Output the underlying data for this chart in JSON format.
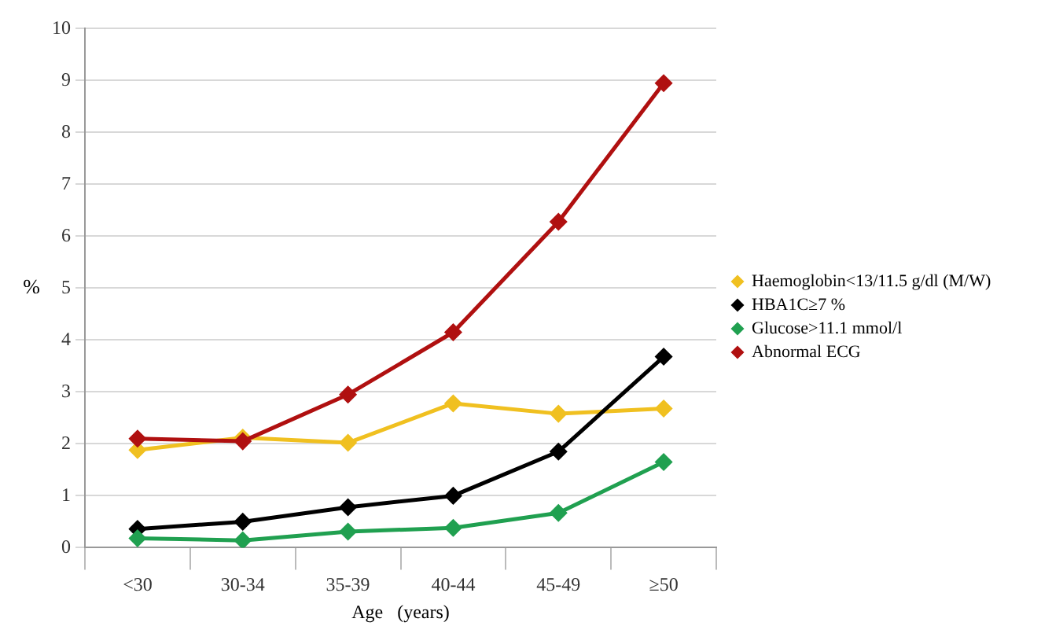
{
  "chart_data": {
    "type": "line",
    "xlabel": "Age   (years)",
    "ylabel": "%",
    "categories": [
      "<30",
      "30-34",
      "35-39",
      "40-44",
      "45-49",
      "≥50"
    ],
    "series": [
      {
        "name": "Haemoglobin<13/11.5 g/dl (M/W)",
        "color": "#f0c020",
        "values": [
          1.88,
          2.12,
          2.02,
          2.78,
          2.58,
          2.68
        ]
      },
      {
        "name": "HBA1C≥7 %",
        "color": "#000000",
        "values": [
          0.36,
          0.5,
          0.78,
          1.0,
          1.85,
          3.68
        ]
      },
      {
        "name": "Glucose>11.1 mmol/l",
        "color": "#20a050",
        "values": [
          0.18,
          0.14,
          0.31,
          0.38,
          0.67,
          1.65
        ]
      },
      {
        "name": "Abnormal ECG",
        "color": "#b01010",
        "values": [
          2.1,
          2.05,
          2.95,
          4.15,
          6.28,
          8.95
        ]
      }
    ],
    "ylim": [
      0,
      10
    ],
    "yticks": [
      0,
      1,
      2,
      3,
      4,
      5,
      6,
      7,
      8,
      9,
      10
    ],
    "grid": "y",
    "legend": "right",
    "marker": "diamond",
    "line_style": "solid"
  }
}
